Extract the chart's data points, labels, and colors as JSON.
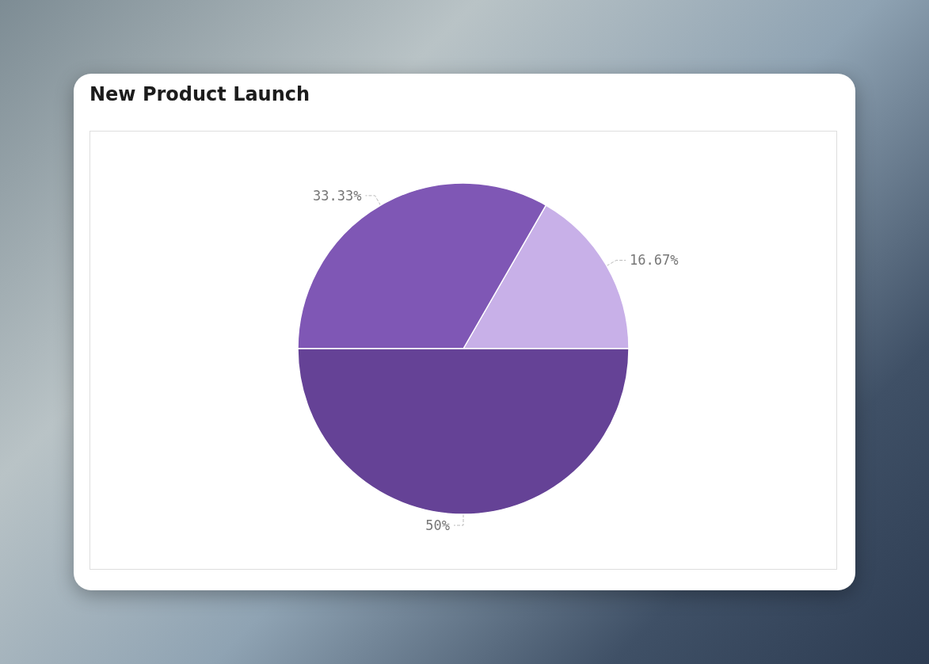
{
  "chart_data": {
    "type": "pie",
    "title": "New Product Launch",
    "categories": [
      null,
      null,
      null
    ],
    "values": [
      16.67,
      33.33,
      50
    ],
    "colors": [
      "#c8b0e8",
      "#7f57b5",
      "#654296"
    ],
    "value_labels": [
      "16.67%",
      "33.33%",
      "50%"
    ]
  }
}
